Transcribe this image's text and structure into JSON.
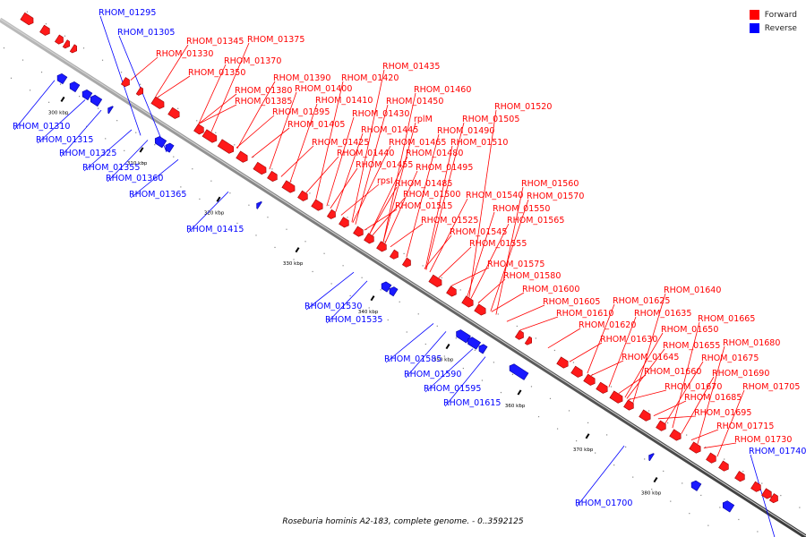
{
  "legend": {
    "forward_label": "Forward",
    "reverse_label": "Reverse",
    "forward_color": "#ff0000",
    "reverse_color": "#0000ff"
  },
  "caption": "Roseburia hominis A2-183, complete genome. - 0..3592125",
  "ticks": [
    "300 kbp",
    "310 kbp",
    "320 kbp",
    "330 kbp",
    "340 kbp",
    "350 kbp",
    "360 kbp",
    "370 kbp",
    "380 kbp"
  ],
  "forward_labels": [
    "RHOM_01330",
    "RHOM_01345",
    "RHOM_01375",
    "RHOM_01370",
    "RHOM_01350",
    "RHOM_01390",
    "RHOM_01420",
    "RHOM_01435",
    "RHOM_01380",
    "RHOM_01400",
    "RHOM_01460",
    "RHOM_01385",
    "RHOM_01410",
    "RHOM_01450",
    "RHOM_01395",
    "RHOM_01430",
    "rplM",
    "RHOM_01405",
    "RHOM_01445",
    "RHOM_01490",
    "RHOM_01505",
    "RHOM_01520",
    "RHOM_01425",
    "RHOM_01465",
    "RHOM_01510",
    "RHOM_01440",
    "RHOM_01480",
    "RHOM_01455",
    "RHOM_01495",
    "rpsI",
    "RHOM_01485",
    "RHOM_01500",
    "RHOM_01540",
    "RHOM_01560",
    "RHOM_01515",
    "RHOM_01570",
    "RHOM_01550",
    "RHOM_01525",
    "RHOM_01565",
    "RHOM_01545",
    "RHOM_01555",
    "RHOM_01575",
    "RHOM_01580",
    "RHOM_01600",
    "RHOM_01605",
    "RHOM_01625",
    "RHOM_01640",
    "RHOM_01610",
    "RHOM_01635",
    "RHOM_01620",
    "RHOM_01650",
    "RHOM_01665",
    "RHOM_01630",
    "RHOM_01655",
    "RHOM_01680",
    "RHOM_01645",
    "RHOM_01675",
    "RHOM_01660",
    "RHOM_01690",
    "RHOM_01670",
    "RHOM_01705",
    "RHOM_01685",
    "RHOM_01695",
    "RHOM_01715",
    "RHOM_01730"
  ],
  "reverse_labels": [
    "RHOM_01295",
    "RHOM_01305",
    "RHOM_01310",
    "RHOM_01315",
    "RHOM_01325",
    "RHOM_01355",
    "RHOM_01360",
    "RHOM_01365",
    "RHOM_01415",
    "RHOM_01530",
    "RHOM_01535",
    "RHOM_01585",
    "RHOM_01590",
    "RHOM_01595",
    "RHOM_01615",
    "RHOM_01700",
    "RHOM_01740"
  ]
}
